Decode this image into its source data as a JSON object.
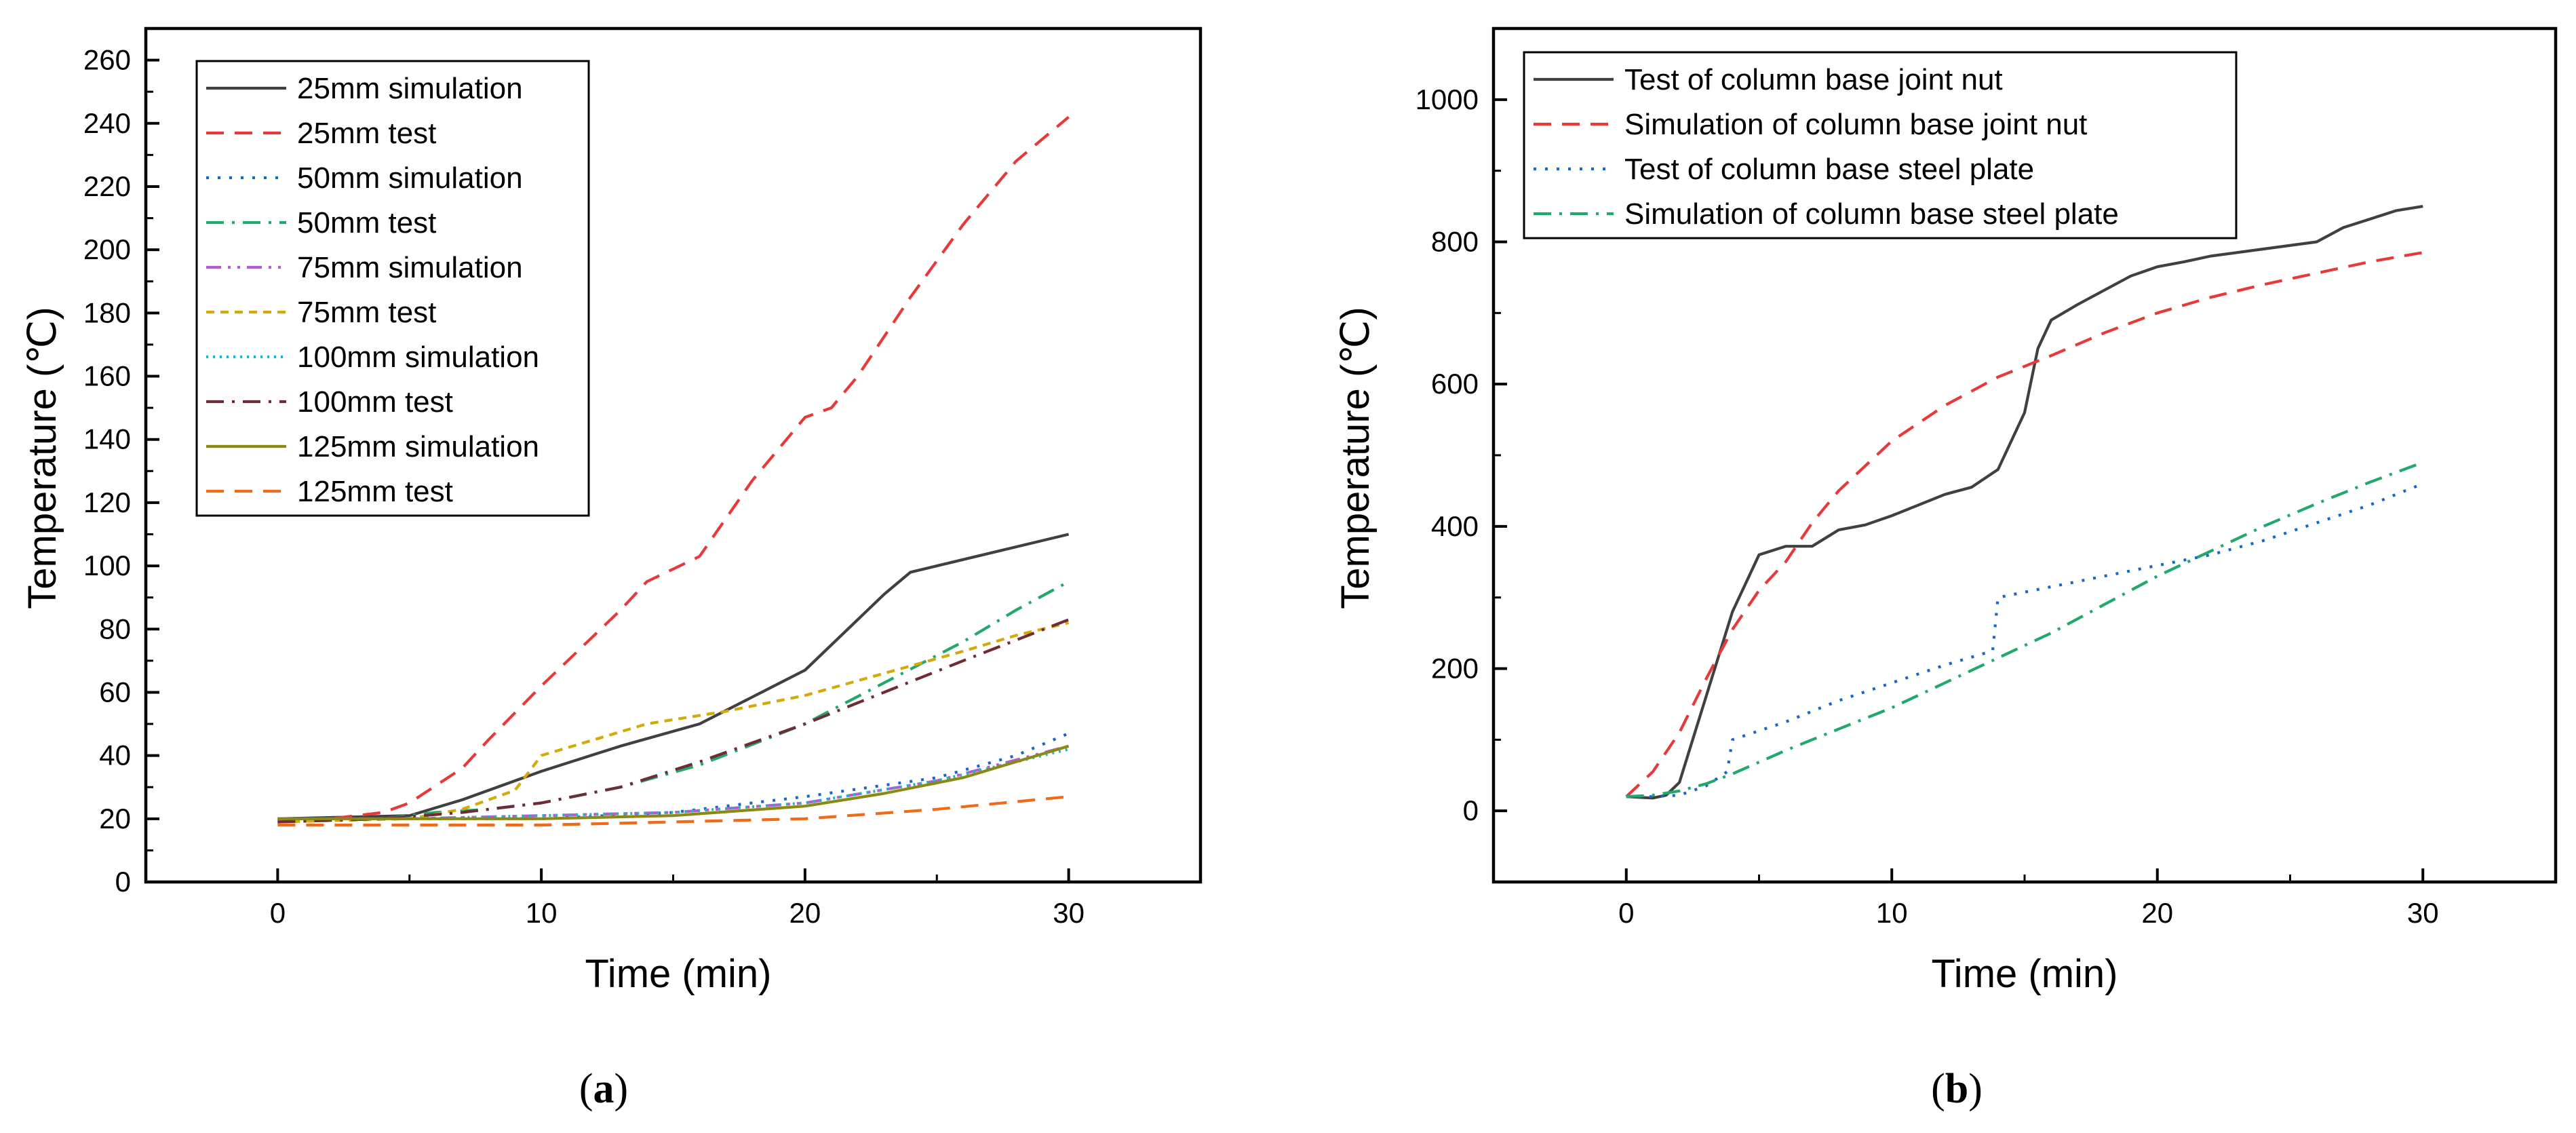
{
  "chart_data": [
    {
      "type": "line",
      "panel": "a",
      "title": "",
      "xlabel": "Time (min)",
      "ylabel": "Temperature (℃)",
      "xlim": [
        -5,
        35
      ],
      "ylim": [
        0,
        270
      ],
      "xticks": [
        0,
        10,
        20,
        30
      ],
      "yticks": [
        0,
        20,
        40,
        60,
        80,
        100,
        120,
        140,
        160,
        180,
        200,
        220,
        240,
        260
      ],
      "grid": false,
      "legend_position": "top-left",
      "series": [
        {
          "name": "25mm simulation",
          "color": "#404040",
          "dash": "solid",
          "x": [
            0,
            5,
            7,
            10,
            13,
            16,
            20,
            23,
            24,
            27,
            30
          ],
          "y": [
            20,
            21,
            26,
            35,
            43,
            50,
            67,
            91,
            98,
            104,
            110
          ]
        },
        {
          "name": "25mm test",
          "color": "#e8393a",
          "dash": "dash",
          "x": [
            0,
            2,
            4,
            5,
            7,
            8,
            10,
            12,
            13,
            14,
            16,
            18,
            20,
            21,
            22,
            24,
            26,
            28,
            30
          ],
          "y": [
            19,
            20,
            22,
            25,
            36,
            45,
            62,
            78,
            86,
            95,
            103,
            127,
            147,
            150,
            160,
            185,
            208,
            228,
            242
          ]
        },
        {
          "name": "50mm simulation",
          "color": "#1a66c8",
          "dash": "dot",
          "x": [
            0,
            5,
            10,
            15,
            20,
            25,
            28,
            30
          ],
          "y": [
            20,
            20,
            20,
            22,
            27,
            33,
            40,
            47
          ]
        },
        {
          "name": "50mm test",
          "color": "#22a86b",
          "dash": "dashdot",
          "x": [
            0,
            4,
            6,
            8,
            10,
            13,
            16,
            20,
            23,
            26,
            28,
            30
          ],
          "y": [
            19,
            20,
            22,
            23,
            25,
            30,
            37,
            50,
            63,
            76,
            86,
            95
          ]
        },
        {
          "name": "75mm simulation",
          "color": "#b35ed0",
          "dash": "dashdotdot",
          "x": [
            0,
            5,
            10,
            15,
            20,
            25,
            30
          ],
          "y": [
            20,
            20,
            21,
            22,
            25,
            32,
            43
          ]
        },
        {
          "name": "75mm test",
          "color": "#d4a90a",
          "dash": "shortdash",
          "x": [
            0,
            5,
            7,
            9,
            10,
            12,
            14,
            17,
            20,
            23,
            26,
            28,
            30
          ],
          "y": [
            19,
            20,
            23,
            29,
            40,
            45,
            50,
            54,
            59,
            66,
            73,
            78,
            82
          ]
        },
        {
          "name": "100mm simulation",
          "color": "#1ab8c4",
          "dash": "shortdot",
          "x": [
            0,
            5,
            10,
            15,
            20,
            25,
            30
          ],
          "y": [
            20,
            20,
            21,
            22,
            25,
            32,
            42
          ]
        },
        {
          "name": "100mm test",
          "color": "#6e2c34",
          "dash": "dashdot",
          "x": [
            0,
            4,
            7,
            10,
            13,
            16,
            20,
            23,
            26,
            30
          ],
          "y": [
            19,
            20,
            22,
            25,
            30,
            38,
            50,
            60,
            70,
            83
          ]
        },
        {
          "name": "125mm simulation",
          "color": "#8a8a12",
          "dash": "solid",
          "x": [
            0,
            5,
            10,
            15,
            20,
            23,
            26,
            28,
            30
          ],
          "y": [
            20,
            20,
            20,
            21,
            24,
            28,
            33,
            38,
            43
          ]
        },
        {
          "name": "125mm test",
          "color": "#f06a18",
          "dash": "dash",
          "x": [
            0,
            5,
            10,
            15,
            20,
            25,
            30
          ],
          "y": [
            18,
            18,
            18,
            19,
            20,
            23,
            27
          ]
        }
      ]
    },
    {
      "type": "line",
      "panel": "b",
      "title": "",
      "xlabel": "Time (min)",
      "ylabel": "Temperature (℃)",
      "xlim": [
        -5,
        35
      ],
      "ylim": [
        -100,
        1100
      ],
      "xticks": [
        0,
        10,
        20,
        30
      ],
      "yticks": [
        0,
        200,
        400,
        600,
        800,
        1000
      ],
      "grid": false,
      "legend_position": "top-left",
      "series": [
        {
          "name": "Test of column base joint nut",
          "color": "#404040",
          "dash": "solid",
          "x": [
            0,
            1,
            1.5,
            2,
            3,
            4,
            5,
            6,
            7,
            8,
            9,
            10,
            11,
            12,
            13,
            14,
            15,
            15.5,
            16,
            17,
            18,
            19,
            20,
            21,
            22,
            24,
            26,
            27,
            28,
            29,
            30
          ],
          "y": [
            20,
            18,
            22,
            40,
            160,
            280,
            360,
            372,
            372,
            395,
            402,
            415,
            430,
            445,
            455,
            480,
            560,
            650,
            690,
            712,
            732,
            752,
            765,
            772,
            780,
            790,
            800,
            820,
            832,
            844,
            850
          ]
        },
        {
          "name": "Simulation of column base joint nut",
          "color": "#e8393a",
          "dash": "dash",
          "x": [
            0,
            1,
            2,
            3,
            4,
            5,
            6,
            7,
            8,
            10,
            12,
            14,
            16,
            18,
            20,
            22,
            24,
            26,
            28,
            30
          ],
          "y": [
            20,
            55,
            110,
            185,
            255,
            310,
            350,
            405,
            450,
            520,
            570,
            610,
            640,
            672,
            700,
            722,
            740,
            756,
            772,
            785
          ]
        },
        {
          "name": "Test of column base steel plate",
          "color": "#1a66c8",
          "dash": "dot",
          "x": [
            0,
            1,
            2,
            3,
            3.8,
            4,
            6,
            8,
            10,
            12,
            13.8,
            14,
            16,
            18,
            20,
            22,
            24,
            26,
            28,
            30
          ],
          "y": [
            20,
            20,
            22,
            35,
            55,
            100,
            125,
            155,
            180,
            205,
            225,
            300,
            315,
            330,
            345,
            360,
            380,
            405,
            430,
            460
          ]
        },
        {
          "name": "Simulation of column base steel plate",
          "color": "#22a86b",
          "dash": "dashdot",
          "x": [
            0,
            1,
            2,
            3,
            4,
            6,
            8,
            10,
            12,
            14,
            16,
            18,
            20,
            22,
            24,
            26,
            28,
            30
          ],
          "y": [
            20,
            22,
            28,
            38,
            52,
            85,
            115,
            145,
            180,
            215,
            250,
            290,
            330,
            365,
            400,
            432,
            462,
            490
          ]
        }
      ]
    }
  ],
  "panels": {
    "a": {
      "label_open": "(",
      "label": "a",
      "label_close": ")"
    },
    "b": {
      "label_open": "(",
      "label": "b",
      "label_close": ")"
    }
  }
}
